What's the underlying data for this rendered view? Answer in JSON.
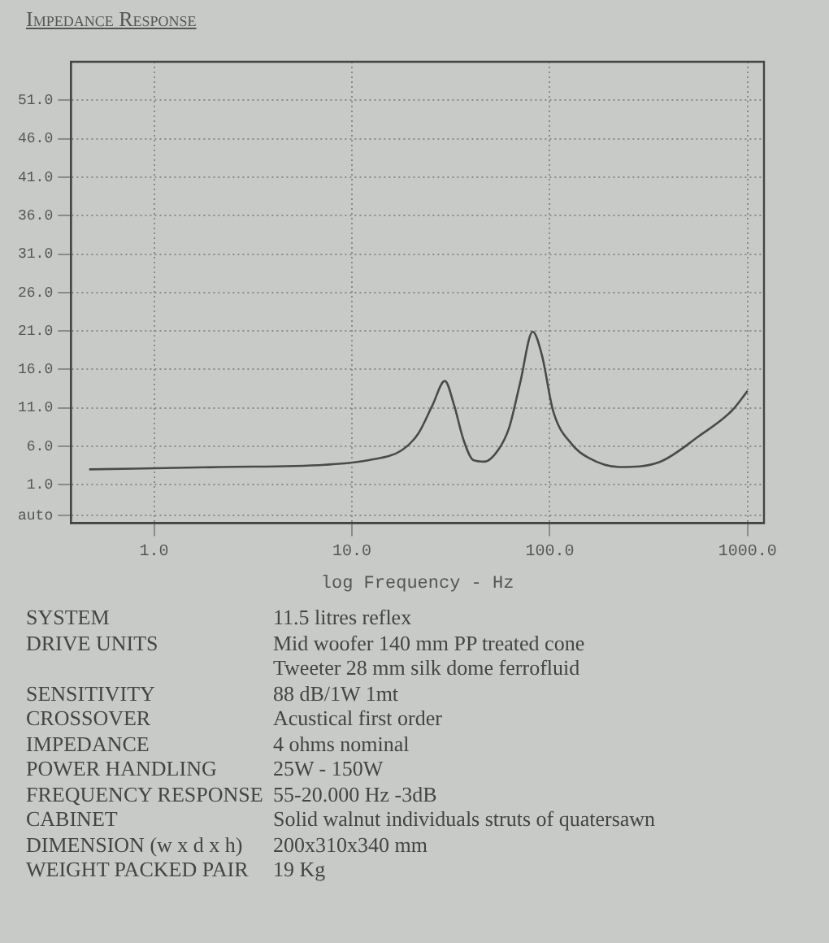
{
  "chart_data": {
    "type": "line",
    "title": "Impedance Response",
    "xlabel": "log Frequency - Hz",
    "log": "x",
    "grid": true,
    "marker": "none",
    "line_style": "solid",
    "legend": false,
    "x": [
      0.47,
      2.17,
      7.3,
      12.2,
      17.9,
      21.7,
      25.5,
      29.5,
      32.9,
      36.6,
      41.1,
      46.7,
      54.8,
      62.3,
      70.8,
      82,
      91.4,
      104,
      130,
      157,
      224,
      362,
      566,
      830,
      1000
    ],
    "series": [
      {
        "color": "#4a4a4a",
        "values": [
          3.0,
          3.3,
          3.6,
          4.2,
          5.5,
          7.7,
          11.3,
          14.5,
          11.3,
          6.9,
          4.2,
          4.0,
          5.5,
          8.4,
          14.2,
          20.9,
          17.8,
          10.6,
          6.2,
          4.5,
          3.3,
          4.0,
          7.3,
          10.6,
          13.2
        ]
      }
    ],
    "xlim": [
      0.38,
      1210
    ],
    "xticks": [
      {
        "value": 1,
        "label": "1.0"
      },
      {
        "value": 10,
        "label": "10.0"
      },
      {
        "value": 100,
        "label": "100.0"
      },
      {
        "value": 1000,
        "label": "1000.0"
      }
    ],
    "ylim": [
      -4,
      56
    ],
    "yticks": [
      {
        "value": -3,
        "label": "auto"
      },
      {
        "value": 1,
        "label": "1.0"
      },
      {
        "value": 6,
        "label": "6.0"
      },
      {
        "value": 11,
        "label": "11.0"
      },
      {
        "value": 16,
        "label": "16.0"
      },
      {
        "value": 21,
        "label": "21.0"
      },
      {
        "value": 26,
        "label": "26.0"
      },
      {
        "value": 31,
        "label": "31.0"
      },
      {
        "value": 36,
        "label": "36.0"
      },
      {
        "value": 41,
        "label": "41.0"
      },
      {
        "value": 46,
        "label": "46.0"
      },
      {
        "value": 51,
        "label": "51.0"
      }
    ],
    "annotations": [
      "SYSTEM",
      "11.5 litres reflex",
      "DRIVE UNITS",
      "Mid woofer 140 mm PP treated cone\nTweeter 28 mm silk dome ferrofluid",
      "SENSITIVITY",
      " 88 dB/1W 1mt",
      "CROSSOVER",
      "Acustical first order",
      "IMPEDANCE",
      "4 ohms nominal",
      "POWER HANDLING",
      "25W - 150W",
      "FREQUENCY RESPONSE",
      "55-20.000 Hz -3dB",
      "CABINET",
      "Solid walnut individuals struts of quatersawn",
      "DIMENSION (w x d x h)",
      "200x310x340 mm",
      "WEIGHT PACKED PAIR",
      "19 Kg"
    ]
  }
}
